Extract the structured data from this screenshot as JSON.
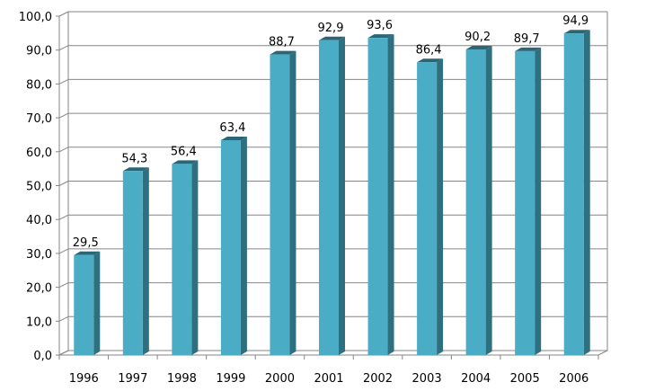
{
  "chart_data": {
    "type": "bar",
    "categories": [
      "1996",
      "1997",
      "1998",
      "1999",
      "2000",
      "2001",
      "2002",
      "2003",
      "2004",
      "2005",
      "2006"
    ],
    "values": [
      29.5,
      54.3,
      56.4,
      63.4,
      88.7,
      92.9,
      93.6,
      86.4,
      90.2,
      89.7,
      94.9
    ],
    "value_labels": [
      "29,5",
      "54,3",
      "56,4",
      "63,4",
      "88,7",
      "92,9",
      "93,6",
      "86,4",
      "90,2",
      "89,7",
      "94,9"
    ],
    "y_ticks": [
      "0,0",
      "10,0",
      "20,0",
      "30,0",
      "40,0",
      "50,0",
      "60,0",
      "70,0",
      "80,0",
      "90,0",
      "100,0"
    ],
    "ylim": [
      0,
      100
    ],
    "grid": true,
    "legend": "none",
    "bar_color": "#4BACC6",
    "bar_side_color": "#2E6F80",
    "bar_top_color": "#2A6676"
  }
}
